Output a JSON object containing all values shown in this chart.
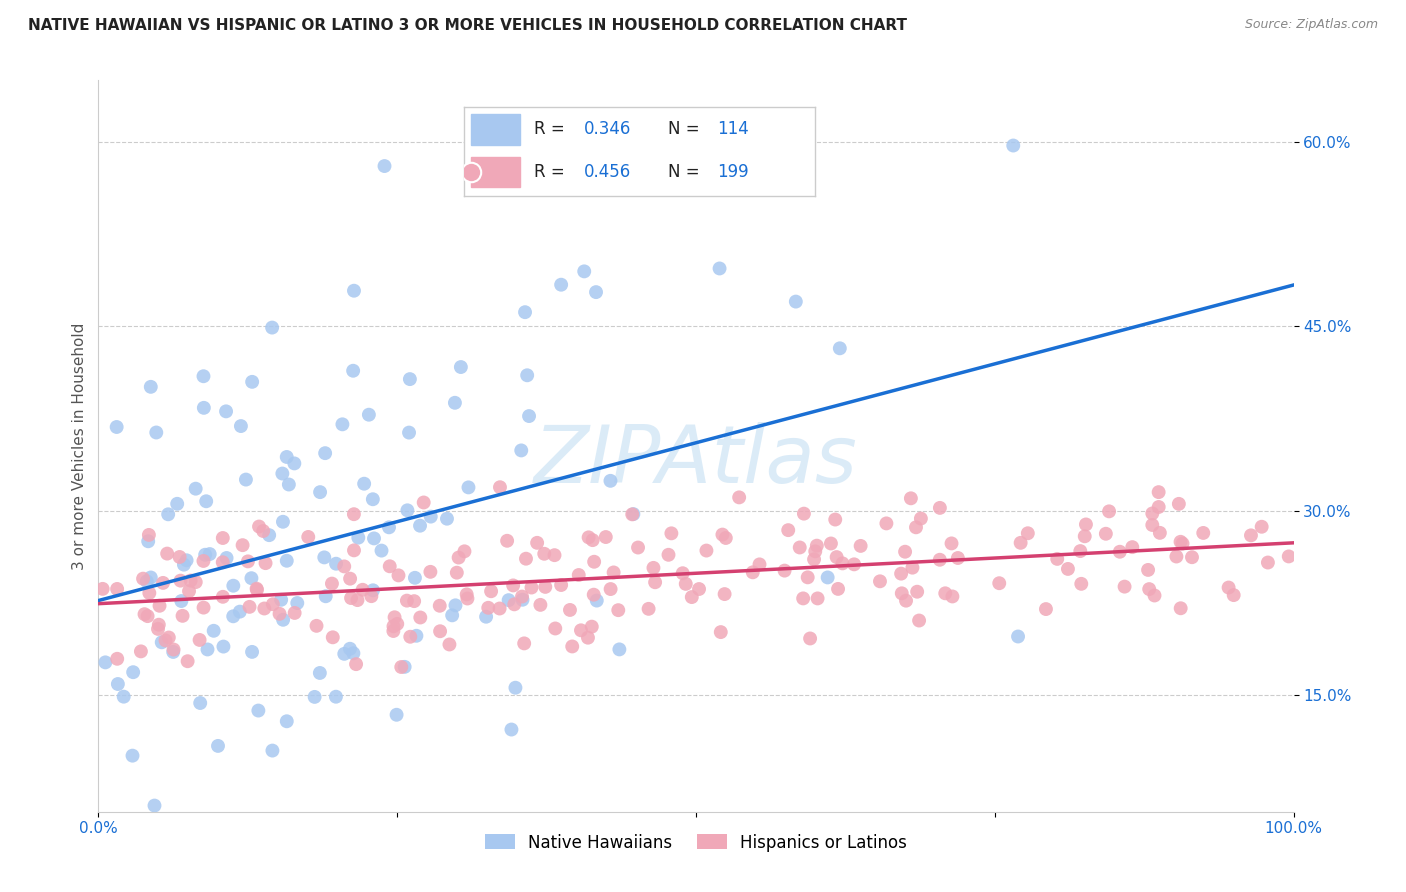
{
  "title": "NATIVE HAWAIIAN VS HISPANIC OR LATINO 3 OR MORE VEHICLES IN HOUSEHOLD CORRELATION CHART",
  "source": "Source: ZipAtlas.com",
  "ylabel_label": "3 or more Vehicles in Household",
  "blue_R": 0.346,
  "blue_N": 114,
  "pink_R": 0.456,
  "pink_N": 199,
  "blue_color": "#a8c8f0",
  "blue_line_color": "#1a6fd4",
  "pink_color": "#f0a8b8",
  "pink_line_color": "#d44070",
  "legend_label_blue": "Native Hawaiians",
  "legend_label_pink": "Hispanics or Latinos",
  "watermark": "ZIPAtlas",
  "bg_color": "#ffffff",
  "grid_color": "#cccccc",
  "title_color": "#222222",
  "axis_label_color": "#555555",
  "x_min": 0.0,
  "x_max": 1.0,
  "y_min": 0.055,
  "y_max": 0.65,
  "y_tick_vals": [
    0.15,
    0.3,
    0.45,
    0.6
  ],
  "y_tick_labels": [
    "15.0%",
    "30.0%",
    "45.0%",
    "60.0%"
  ],
  "x_tick_vals": [
    0.0,
    0.25,
    0.5,
    0.75,
    1.0
  ],
  "x_tick_labels": [
    "0.0%",
    "",
    "",
    "",
    "100.0%"
  ],
  "seed_blue": 42,
  "seed_pink": 99
}
